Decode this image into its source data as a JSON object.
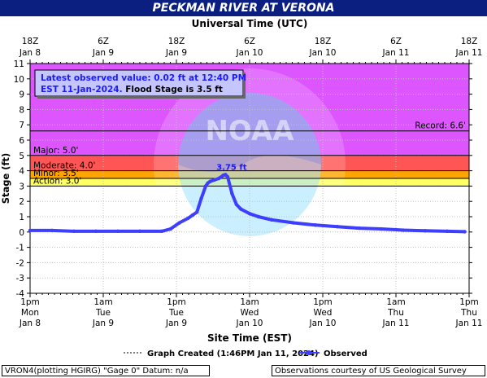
{
  "chart_data": {
    "type": "line",
    "title": "PECKMAN RIVER AT VERONA",
    "top_axis_title": "Universal Time (UTC)",
    "bottom_axis_title": "Site Time (EST)",
    "ylabel": "Stage (ft)",
    "ylim": [
      -4,
      11
    ],
    "y_ticks": [
      "-4",
      "-3",
      "-2",
      "-1",
      "0",
      "1",
      "2",
      "3",
      "4",
      "5",
      "6",
      "7",
      "8",
      "9",
      "10",
      "11"
    ],
    "top_ticks": [
      {
        "line1": "18Z",
        "line2": "Jan 8"
      },
      {
        "line1": "6Z",
        "line2": "Jan 9"
      },
      {
        "line1": "18Z",
        "line2": "Jan 9"
      },
      {
        "line1": "6Z",
        "line2": "Jan 10"
      },
      {
        "line1": "18Z",
        "line2": "Jan 10"
      },
      {
        "line1": "6Z",
        "line2": "Jan 11"
      },
      {
        "line1": "18Z",
        "line2": "Jan 11"
      }
    ],
    "bottom_ticks": [
      {
        "line1": "1pm",
        "line2": "Mon",
        "line3": "Jan 8"
      },
      {
        "line1": "1am",
        "line2": "Tue",
        "line3": "Jan 9"
      },
      {
        "line1": "1pm",
        "line2": "Tue",
        "line3": "Jan 9"
      },
      {
        "line1": "1am",
        "line2": "Wed",
        "line3": "Jan 10"
      },
      {
        "line1": "1pm",
        "line2": "Wed",
        "line3": "Jan 10"
      },
      {
        "line1": "1am",
        "line2": "Thu",
        "line3": "Jan 11"
      },
      {
        "line1": "1pm",
        "line2": "Thu",
        "line3": "Jan 11"
      }
    ],
    "flood_categories": [
      {
        "label": "Action: 3.0'",
        "lower": 3.0,
        "upper": 3.5,
        "color": "#ffff66"
      },
      {
        "label": "Minor: 3.5'",
        "lower": 3.5,
        "upper": 4.0,
        "color": "#ffa500"
      },
      {
        "label": "Moderate: 4.0'",
        "lower": 4.0,
        "upper": 5.0,
        "color": "#ff5555"
      },
      {
        "label": "Major: 5.0'",
        "lower": 5.0,
        "upper": 11.0,
        "color": "#dd55ff"
      }
    ],
    "record": {
      "label": "Record: 6.6'",
      "value": 6.6
    },
    "peak_label": "3.75 ft",
    "peak": {
      "x": 0.446,
      "y": 3.75
    },
    "annotation_line1": "Latest observed value: 0.02  ft at 12:40 PM",
    "annotation_line2a": "EST 11-Jan-2024.",
    "annotation_line2b": "Flood Stage is 3.5 ft",
    "series": [
      {
        "name": "Observed",
        "color": "#3e3eff",
        "x_fraction": [
          0.0,
          0.05,
          0.1,
          0.15,
          0.2,
          0.25,
          0.3,
          0.32,
          0.34,
          0.36,
          0.37,
          0.38,
          0.39,
          0.4,
          0.405,
          0.41,
          0.42,
          0.43,
          0.44,
          0.445,
          0.45,
          0.46,
          0.47,
          0.48,
          0.5,
          0.52,
          0.55,
          0.6,
          0.65,
          0.7,
          0.75,
          0.8,
          0.85,
          0.9,
          0.95,
          0.99
        ],
        "values": [
          0.1,
          0.1,
          0.05,
          0.05,
          0.05,
          0.05,
          0.05,
          0.2,
          0.6,
          0.9,
          1.1,
          1.3,
          2.2,
          3.0,
          3.2,
          3.3,
          3.4,
          3.5,
          3.7,
          3.75,
          3.6,
          2.5,
          1.8,
          1.5,
          1.2,
          1.0,
          0.8,
          0.6,
          0.45,
          0.35,
          0.25,
          0.2,
          0.12,
          0.08,
          0.05,
          0.02
        ]
      }
    ],
    "legend_created": "Graph Created (1:46PM Jan 11, 2024)",
    "legend_observed": "Observed"
  },
  "footer": {
    "left": "VRON4(plotting HGIRG) \"Gage 0\" Datum: n/a",
    "right": "Observations courtesy of US Geological Survey"
  },
  "colors": {
    "title_bg": "#0b1f80",
    "series": "#3e3eff",
    "annotation_text": "#1a1aff"
  }
}
